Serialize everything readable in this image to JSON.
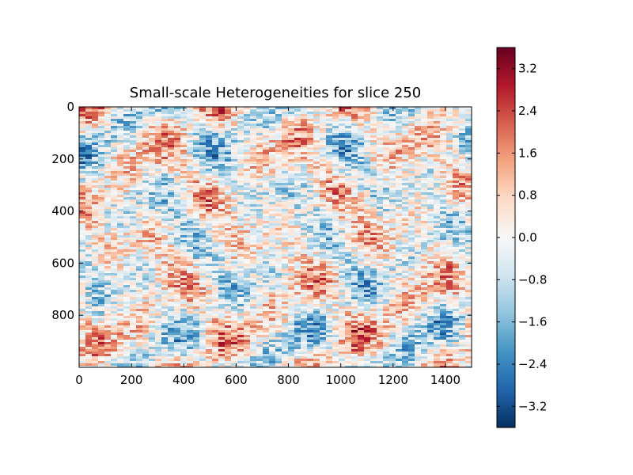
{
  "chart_data": {
    "type": "heatmap",
    "title": "Small-scale Heterogeneities for slice 250",
    "xlabel": "",
    "ylabel": "",
    "xlim": [
      0,
      1500
    ],
    "ylim": [
      1000,
      0
    ],
    "x_ticks": [
      0,
      200,
      400,
      600,
      800,
      1000,
      1200,
      1400
    ],
    "y_ticks": [
      0,
      200,
      400,
      600,
      800
    ],
    "x_tick_labels": [
      "0",
      "200",
      "400",
      "600",
      "800",
      "1000",
      "1200",
      "1400"
    ],
    "y_tick_labels": [
      "0",
      "200",
      "400",
      "600",
      "800"
    ],
    "colormap": "RdBu_r",
    "colorbar": {
      "vmin": -3.6,
      "vmax": 3.6,
      "ticks": [
        3.2,
        2.4,
        1.6,
        0.8,
        0.0,
        -0.8,
        -1.6,
        -2.4,
        -3.2
      ],
      "tick_labels": [
        "3.2",
        "2.4",
        "1.6",
        "0.8",
        "0.0",
        "−0.8",
        "−1.6",
        "−2.4",
        "−3.2"
      ]
    },
    "colors": {
      "dark_red": "#67001f",
      "red": "#b2182b",
      "orange_red": "#d6604d",
      "salmon": "#f4a582",
      "light_salmon": "#fddbc7",
      "white": "#f7f7f7",
      "light_blue": "#d1e5f0",
      "sky_blue": "#92c5de",
      "blue": "#4393c3",
      "mid_blue": "#2166ac",
      "dark_blue": "#053061"
    }
  }
}
